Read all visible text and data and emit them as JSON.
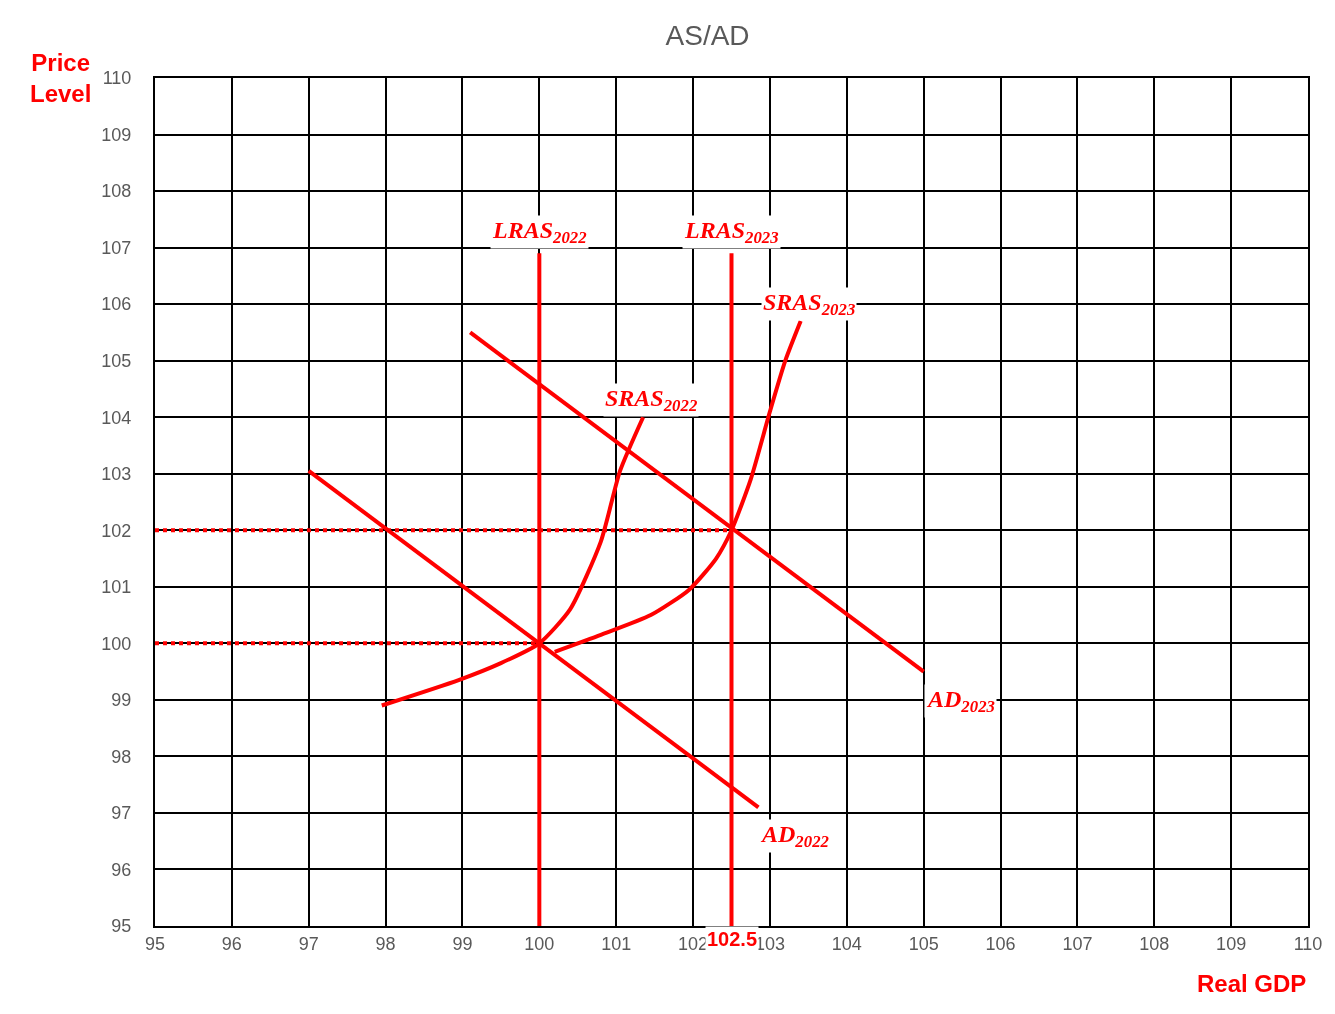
{
  "chart_data": {
    "type": "line",
    "title": "AS/AD",
    "xlabel": "Real GDP",
    "ylabel": "Price Level",
    "xlim": [
      95,
      110
    ],
    "ylim": [
      95,
      110
    ],
    "xticks": [
      95,
      96,
      97,
      98,
      99,
      100,
      101,
      102,
      103,
      104,
      105,
      106,
      107,
      108,
      109,
      110
    ],
    "yticks": [
      95,
      96,
      97,
      98,
      99,
      100,
      101,
      102,
      103,
      104,
      105,
      106,
      107,
      108,
      109,
      110
    ],
    "grid": true,
    "legend": false,
    "marker": "none",
    "line_style": "solid",
    "series": [
      {
        "name": "LRAS$_{2022}$",
        "color": "#ff0000",
        "x": [
          100,
          100
        ],
        "values": [
          95,
          106.9
        ]
      },
      {
        "name": "LRAS$_{2023}$",
        "color": "#ff0000",
        "x": [
          102.5,
          102.5
        ],
        "values": [
          95,
          106.9
        ]
      },
      {
        "name": "AD$_{2022}$",
        "color": "#ff0000",
        "x": [
          97.0,
          102.85
        ],
        "values": [
          103.05,
          97.1
        ]
      },
      {
        "name": "AD$_{2023}$",
        "color": "#ff0000",
        "x": [
          99.1,
          105.0
        ],
        "values": [
          105.5,
          99.5
        ]
      },
      {
        "name": "SRAS$_{2022}$",
        "color": "#ff0000",
        "x": [
          97.95,
          98.95,
          99.5,
          100.0,
          100.4,
          100.8,
          101.05,
          101.35
        ],
        "values": [
          98.9,
          99.35,
          99.65,
          100.0,
          100.6,
          101.8,
          103.05,
          104.0
        ]
      },
      {
        "name": "SRAS$_{2023}$",
        "color": "#ff0000",
        "x": [
          100.2,
          100.8,
          101.45,
          101.95,
          102.3,
          102.5,
          102.75,
          103.0,
          103.2,
          103.4
        ],
        "values": [
          99.85,
          100.15,
          100.5,
          100.95,
          101.5,
          102.0,
          102.9,
          104.1,
          105.0,
          105.7
        ]
      },
      {
        "color": "#ff0000",
        "x": [
          95,
          102.5
        ],
        "values": [
          102,
          102
        ],
        "line_style": "dotted"
      },
      {
        "color": "#ff0000",
        "x": [
          95,
          100
        ],
        "values": [
          100,
          100
        ],
        "line_style": "dotted"
      }
    ],
    "annotations": [
      {
        "text": "102.5",
        "x": 102.5,
        "y": 95
      }
    ]
  }
}
